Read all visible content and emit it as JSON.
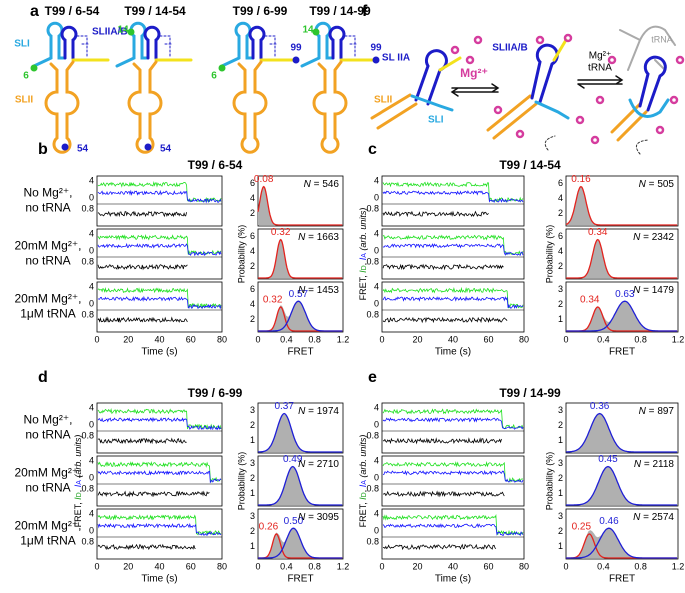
{
  "panel_a": {
    "label": "a",
    "constructs": [
      {
        "title": "T99 / 6-54",
        "donor": "6",
        "acceptor": "54"
      },
      {
        "title": "T99 / 14-54",
        "donor": "14",
        "acceptor": "54"
      },
      {
        "title": "T99 / 6-99",
        "donor": "6",
        "acceptor": "99"
      },
      {
        "title": "T99 / 14-99",
        "donor": "14",
        "acceptor": "99"
      }
    ],
    "labels": {
      "sli": "SLI",
      "sliiab": "SLIIA/B",
      "slii": "SLII"
    }
  },
  "panel_f": {
    "label": "f",
    "sliia": "SL IIA",
    "slii": "SLII",
    "sli": "SLI",
    "sliiab": "SLIIA/B",
    "mg": "Mg²⁺",
    "mg2": "Mg²⁺",
    "trna2": "tRNA",
    "trna": "tRNA"
  },
  "conditions": [
    [
      "No Mg²⁺,",
      "no tRNA"
    ],
    [
      "20mM Mg²⁺,",
      "no tRNA"
    ],
    [
      "20mM Mg²⁺,",
      "1μM tRNA"
    ]
  ],
  "trace_yticks": [
    "4",
    "0",
    "0.8"
  ],
  "time_ticks": [
    "0",
    "20",
    "40",
    "60",
    "80"
  ],
  "fret_ticks": [
    "0",
    "0.4",
    "0.8",
    "1.2"
  ],
  "time_label": "Time (s)",
  "fret_label": "FRET",
  "prob_label": "Probability (%)",
  "intensity_label": {
    "prefix": "FRET, ",
    "id": "I",
    "id_sub": "D",
    "sep": ", ",
    "ia": "I",
    "ia_sub": "A",
    "suffix": " (arb. units)"
  },
  "n_symbol": "N",
  "n_eq": " = ",
  "panels": [
    {
      "label": "b",
      "title": "T99 / 6-54",
      "rows": [
        {
          "n": "546",
          "hist_yticks": [
            "6",
            "4",
            "2"
          ],
          "peaks": [
            {
              "label": "0.08",
              "color": "#e3231e"
            }
          ]
        },
        {
          "n": "1663",
          "hist_yticks": [
            "6",
            "4",
            "2"
          ],
          "peaks": [
            {
              "label": "0.32",
              "color": "#e3231e"
            }
          ]
        },
        {
          "n": "1453",
          "hist_yticks": [
            "6",
            "4",
            "2"
          ],
          "peaks": [
            {
              "label": "0.32",
              "color": "#e3231e"
            },
            {
              "label": "0.57",
              "color": "#1f1fd6"
            }
          ]
        }
      ]
    },
    {
      "label": "c",
      "title": "T99 / 14-54",
      "rows": [
        {
          "n": "505",
          "hist_yticks": [
            "6",
            "4",
            "2"
          ],
          "peaks": [
            {
              "label": "0.16",
              "color": "#e3231e"
            }
          ]
        },
        {
          "n": "2342",
          "hist_yticks": [
            "6",
            "4",
            "2"
          ],
          "peaks": [
            {
              "label": "0.34",
              "color": "#e3231e"
            }
          ]
        },
        {
          "n": "1479",
          "hist_yticks": [
            "3",
            "2",
            "1"
          ],
          "peaks": [
            {
              "label": "0.34",
              "color": "#e3231e"
            },
            {
              "label": "0.63",
              "color": "#1f1fd6"
            }
          ]
        }
      ]
    },
    {
      "label": "d",
      "title": "T99 / 6-99",
      "rows": [
        {
          "n": "1974",
          "hist_yticks": [
            "3",
            "2",
            "1"
          ],
          "peaks": [
            {
              "label": "0.37",
              "color": "#1f1fd6"
            }
          ]
        },
        {
          "n": "2710",
          "hist_yticks": [
            "3",
            "2",
            "1"
          ],
          "peaks": [
            {
              "label": "0.49",
              "color": "#1f1fd6"
            }
          ]
        },
        {
          "n": "3095",
          "hist_yticks": [
            "3",
            "2",
            "1"
          ],
          "peaks": [
            {
              "label": "0.26",
              "color": "#e3231e"
            },
            {
              "label": "0.50",
              "color": "#1f1fd6"
            }
          ]
        }
      ]
    },
    {
      "label": "e",
      "title": "T99 / 14-99",
      "rows": [
        {
          "n": "897",
          "hist_yticks": [
            "3",
            "2",
            "1"
          ],
          "peaks": [
            {
              "label": "0.36",
              "color": "#1f1fd6"
            }
          ]
        },
        {
          "n": "2118",
          "hist_yticks": [
            "3",
            "2",
            "1"
          ],
          "peaks": [
            {
              "label": "0.45",
              "color": "#1f1fd6"
            }
          ]
        },
        {
          "n": "2574",
          "hist_yticks": [
            "3",
            "2",
            "1"
          ],
          "peaks": [
            {
              "label": "0.25",
              "color": "#e3231e"
            },
            {
              "label": "0.46",
              "color": "#1f1fd6"
            }
          ]
        }
      ]
    }
  ]
}
